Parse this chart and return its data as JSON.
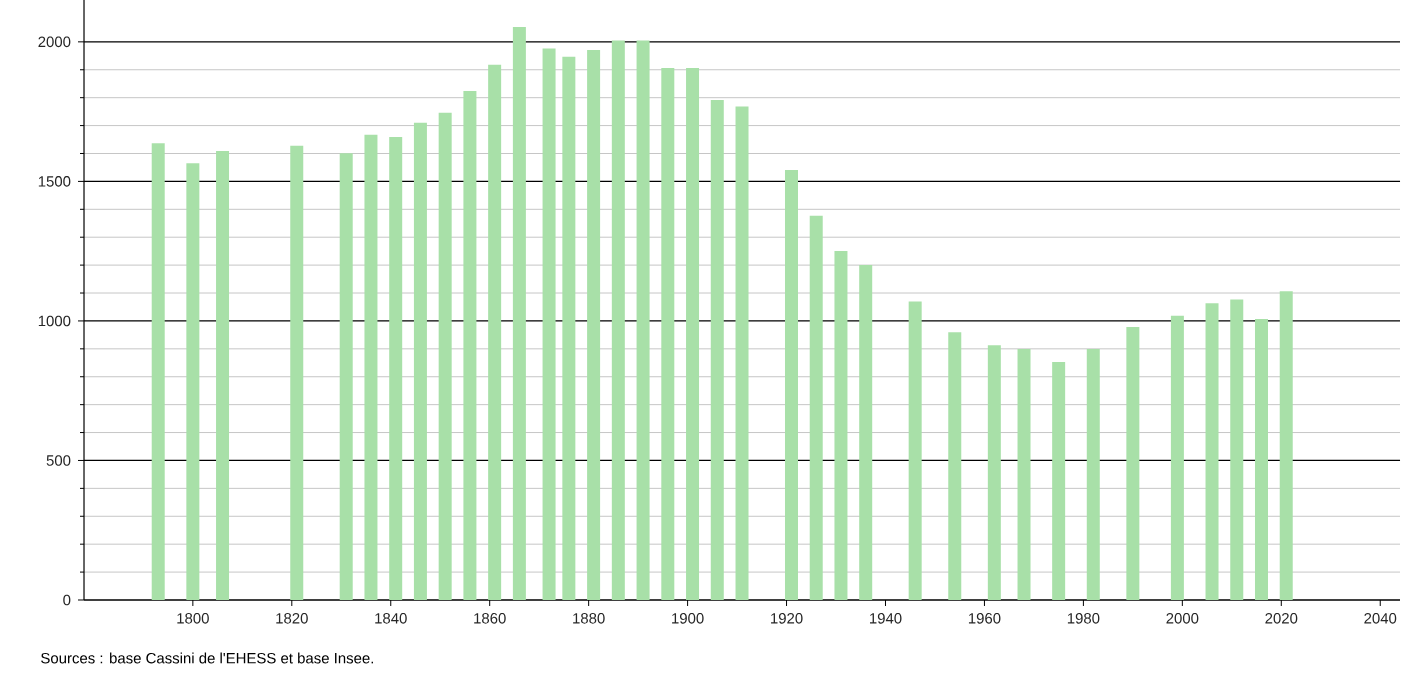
{
  "chart_data": {
    "type": "bar",
    "x": [
      1793,
      1800,
      1806,
      1821,
      1831,
      1836,
      1841,
      1846,
      1851,
      1856,
      1861,
      1866,
      1872,
      1876,
      1881,
      1886,
      1891,
      1896,
      1901,
      1906,
      1911,
      1921,
      1926,
      1931,
      1936,
      1946,
      1954,
      1962,
      1968,
      1975,
      1982,
      1990,
      1999,
      2006,
      2011,
      2016,
      2021
    ],
    "values": [
      1637,
      1565,
      1609,
      1628,
      1601,
      1667,
      1659,
      1710,
      1746,
      1824,
      1918,
      2053,
      1976,
      1947,
      1971,
      2005,
      2005,
      1906,
      1906,
      1792,
      1768,
      1541,
      1377,
      1251,
      1200,
      1070,
      959,
      913,
      899,
      853,
      899,
      978,
      1019,
      1063,
      1077,
      1007,
      1106
    ],
    "color": "#a8e0a8",
    "xlim": [
      1778,
      2044
    ],
    "ylim": [
      0,
      2150
    ],
    "xticks": [
      1800,
      1820,
      1840,
      1860,
      1880,
      1900,
      1920,
      1940,
      1960,
      1980,
      2000,
      2020,
      2040
    ],
    "yticks": [
      0,
      500,
      1000,
      1500,
      2000
    ],
    "grid": "y",
    "annotations": [
      "Sources : base Cassini de l'EHESS et base Insee."
    ]
  }
}
